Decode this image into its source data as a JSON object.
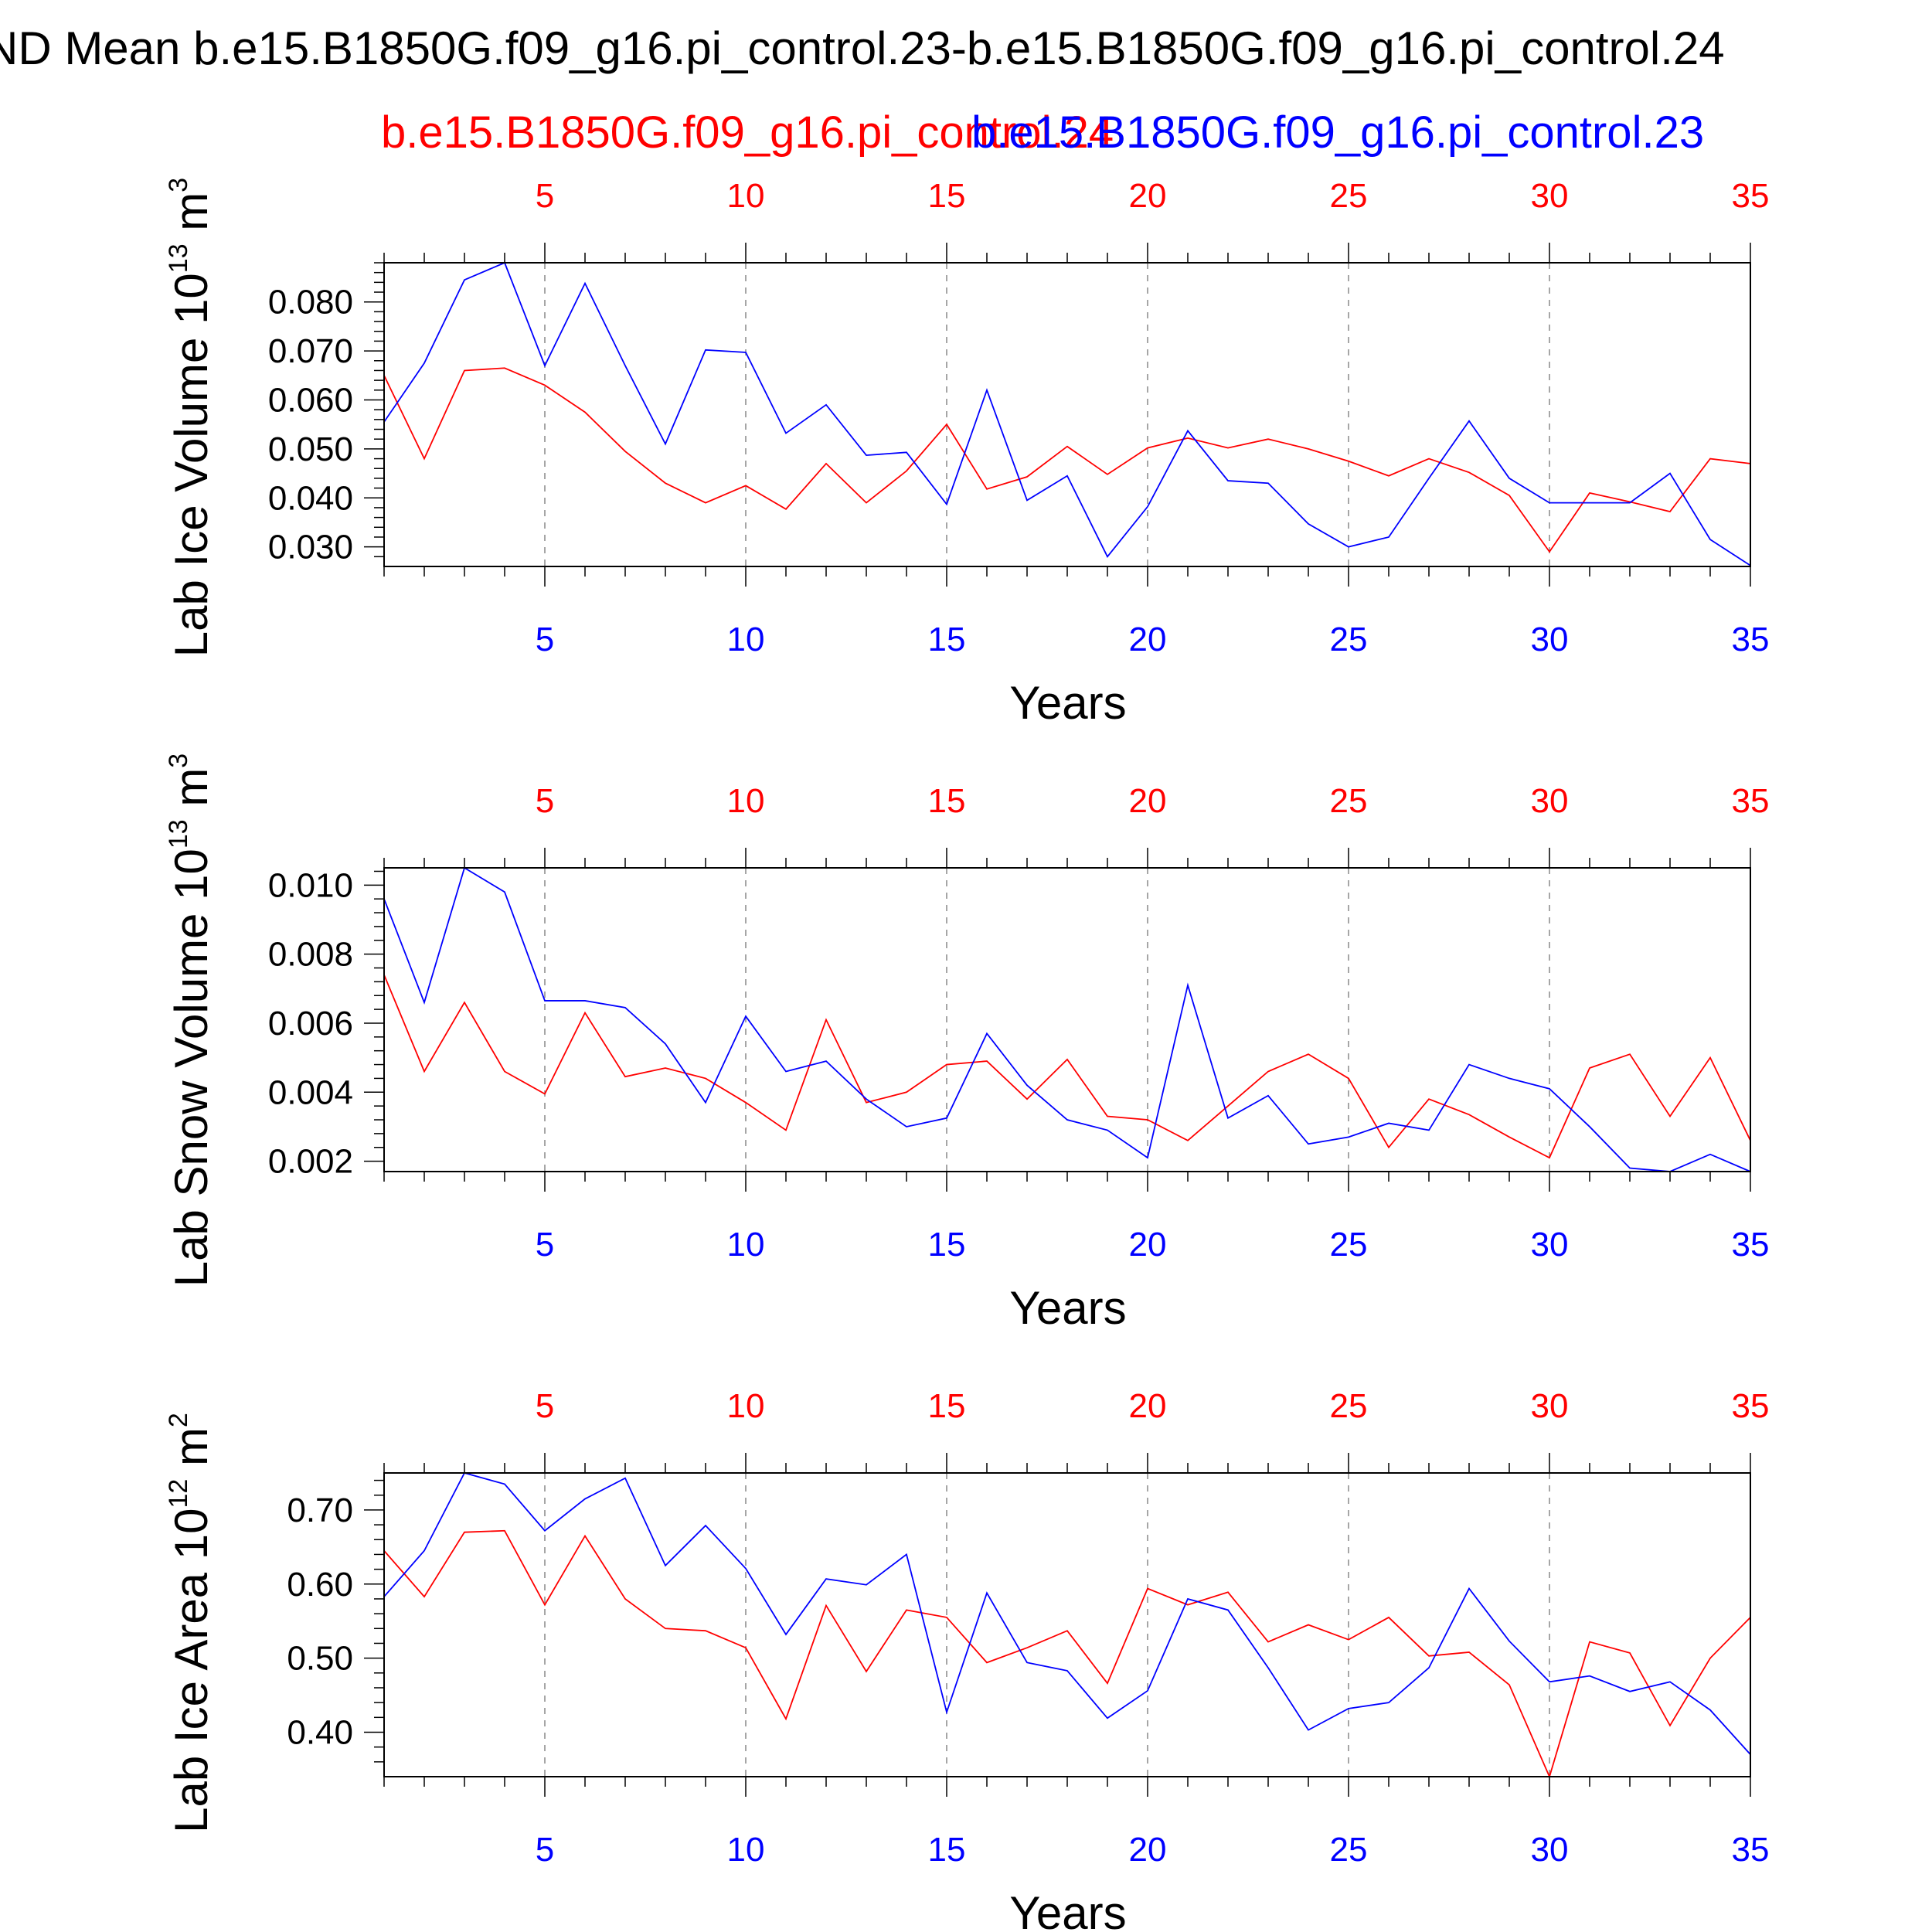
{
  "header": {
    "title": "ND Mean b.e15.B1850G.f09_g16.pi_control.23-b.e15.B1850G.f09_g16.pi_control.24",
    "legend_red": "b.e15.B1850G.f09_g16.pi_control.24",
    "legend_blue": "b.e15.B1850G.f09_g16.pi_control.23"
  },
  "colors": {
    "red_series": "#ff0000",
    "blue_series": "#0000ff",
    "frame": "#000000",
    "grid": "#888888"
  },
  "chart_data": [
    {
      "type": "line",
      "ylabel": "Lab Ice Volume 10",
      "ylabel_exp": "13",
      "ylabel_unit": " m",
      "ylabel_unit_exp": "3",
      "xlabel": "Years",
      "xlim": [
        1,
        35
      ],
      "ylim": [
        0.026,
        0.088
      ],
      "yticks": [
        0.03,
        0.04,
        0.05,
        0.06,
        0.07,
        0.08
      ],
      "ytick_labels": [
        "0.030",
        "0.040",
        "0.050",
        "0.060",
        "0.070",
        "0.080"
      ],
      "xticks": [
        5,
        10,
        15,
        20,
        25,
        30,
        35
      ],
      "xtick_labels": [
        "5",
        "10",
        "15",
        "20",
        "25",
        "30",
        "35"
      ],
      "grid": "vertical dashed",
      "series": [
        {
          "color": "#ff0000",
          "values": [
            0.065,
            0.048,
            0.066,
            0.0665,
            0.063,
            0.0575,
            0.0495,
            0.043,
            0.039,
            0.0425,
            0.0377,
            0.047,
            0.039,
            0.0455,
            0.055,
            0.0418,
            0.0443,
            0.0505,
            0.0448,
            0.0502,
            0.0522,
            0.0502,
            0.052,
            0.05,
            0.0475,
            0.0445,
            0.048,
            0.0452,
            0.0405,
            0.029,
            0.041,
            0.0392,
            0.0372,
            0.048,
            0.047
          ]
        },
        {
          "color": "#0000ff",
          "values": [
            0.0555,
            0.0675,
            0.0845,
            0.088,
            0.067,
            0.0838,
            0.067,
            0.051,
            0.0702,
            0.0697,
            0.0532,
            0.059,
            0.0487,
            0.0493,
            0.0387,
            0.062,
            0.0395,
            0.0445,
            0.028,
            0.0382,
            0.0537,
            0.0435,
            0.043,
            0.0347,
            0.03,
            0.032,
            0.044,
            0.0557,
            0.044,
            0.039,
            0.039,
            0.039,
            0.045,
            0.0315,
            0.0262
          ]
        }
      ]
    },
    {
      "type": "line",
      "ylabel": "Lab Snow Volume 10",
      "ylabel_exp": "13",
      "ylabel_unit": " m",
      "ylabel_unit_exp": "3",
      "xlabel": "Years",
      "xlim": [
        1,
        35
      ],
      "ylim": [
        0.0017,
        0.0105
      ],
      "yticks": [
        0.002,
        0.004,
        0.006,
        0.008,
        0.01
      ],
      "ytick_labels": [
        "0.002",
        "0.004",
        "0.006",
        "0.008",
        "0.010"
      ],
      "xticks": [
        5,
        10,
        15,
        20,
        25,
        30,
        35
      ],
      "xtick_labels": [
        "5",
        "10",
        "15",
        "20",
        "25",
        "30",
        "35"
      ],
      "grid": "vertical dashed",
      "series": [
        {
          "color": "#ff0000",
          "values": [
            0.0074,
            0.0046,
            0.0066,
            0.0046,
            0.00395,
            0.0063,
            0.00445,
            0.0047,
            0.0044,
            0.0037,
            0.0029,
            0.0061,
            0.0037,
            0.004,
            0.0048,
            0.0049,
            0.0038,
            0.00495,
            0.0033,
            0.0032,
            0.0026,
            0.0036,
            0.0046,
            0.0051,
            0.0044,
            0.0024,
            0.0038,
            0.00335,
            0.0027,
            0.0021,
            0.0047,
            0.0051,
            0.0033,
            0.005,
            0.0026
          ]
        },
        {
          "color": "#0000ff",
          "values": [
            0.0096,
            0.0066,
            0.0105,
            0.0098,
            0.00665,
            0.00665,
            0.00645,
            0.0054,
            0.0037,
            0.0062,
            0.0046,
            0.0049,
            0.0038,
            0.003,
            0.00325,
            0.0057,
            0.0042,
            0.0032,
            0.0029,
            0.0021,
            0.0071,
            0.00325,
            0.0039,
            0.0025,
            0.0027,
            0.0031,
            0.0029,
            0.0048,
            0.0044,
            0.0041,
            0.003,
            0.0018,
            0.0017,
            0.0022,
            0.0017
          ]
        }
      ]
    },
    {
      "type": "line",
      "ylabel": "Lab Ice Area 10",
      "ylabel_exp": "12",
      "ylabel_unit": " m",
      "ylabel_unit_exp": "2",
      "xlabel": "Years",
      "xlim": [
        1,
        35
      ],
      "ylim": [
        0.34,
        0.75
      ],
      "yticks": [
        0.4,
        0.5,
        0.6,
        0.7
      ],
      "ytick_labels": [
        "0.40",
        "0.50",
        "0.60",
        "0.70"
      ],
      "xticks": [
        5,
        10,
        15,
        20,
        25,
        30,
        35
      ],
      "xtick_labels": [
        "5",
        "10",
        "15",
        "20",
        "25",
        "30",
        "35"
      ],
      "grid": "vertical dashed",
      "series": [
        {
          "color": "#ff0000",
          "values": [
            0.645,
            0.583,
            0.67,
            0.672,
            0.572,
            0.665,
            0.58,
            0.54,
            0.537,
            0.514,
            0.418,
            0.571,
            0.482,
            0.565,
            0.555,
            0.494,
            0.514,
            0.537,
            0.466,
            0.594,
            0.572,
            0.589,
            0.522,
            0.545,
            0.525,
            0.555,
            0.503,
            0.508,
            0.464,
            0.34,
            0.522,
            0.507,
            0.409,
            0.5,
            0.555
          ]
        },
        {
          "color": "#0000ff",
          "values": [
            0.583,
            0.645,
            0.75,
            0.735,
            0.672,
            0.715,
            0.743,
            0.625,
            0.679,
            0.621,
            0.532,
            0.607,
            0.599,
            0.64,
            0.427,
            0.588,
            0.494,
            0.483,
            0.419,
            0.456,
            0.58,
            0.565,
            0.487,
            0.403,
            0.432,
            0.44,
            0.487,
            0.594,
            0.523,
            0.468,
            0.476,
            0.455,
            0.468,
            0.43,
            0.37
          ]
        }
      ]
    }
  ]
}
